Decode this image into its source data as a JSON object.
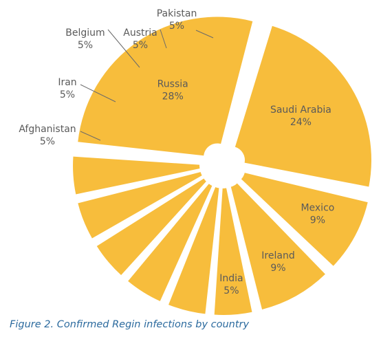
{
  "chart_data": {
    "type": "pie",
    "title": "Figure 2. Confirmed Regin infections by country",
    "categories": [
      "Russia",
      "Saudi Arabia",
      "Mexico",
      "Ireland",
      "India",
      "Afghanistan",
      "Iran",
      "Belgium",
      "Austria",
      "Pakistan"
    ],
    "values": [
      28,
      24,
      9,
      9,
      5,
      5,
      5,
      5,
      5,
      5
    ],
    "value_labels": [
      "28%",
      "24%",
      "9%",
      "9%",
      "5%",
      "5%",
      "5%",
      "5%",
      "5%",
      "5%"
    ],
    "slice_color": "#f7bd3c",
    "label_color": "#5a5a5a",
    "leader_color": "#6a6a6a",
    "caption_color": "#2b6a9e"
  }
}
